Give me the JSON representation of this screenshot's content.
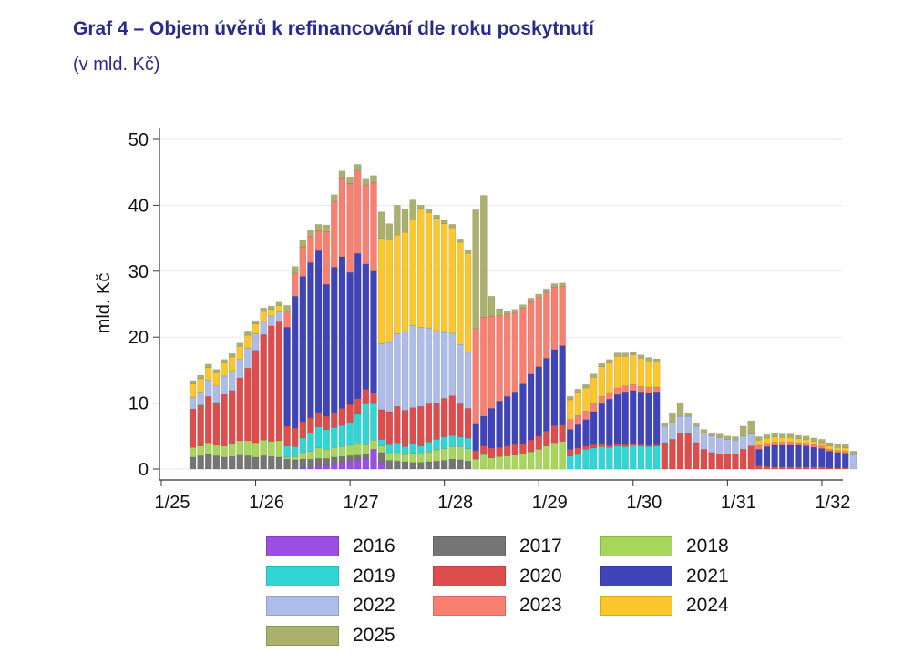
{
  "title": "Graf 4 – Objem úvěrů k refinancování dle roku poskytnutí",
  "subtitle": "(v mld. Kč)",
  "colors": {
    "2016": "#9b4de4",
    "2017": "#757575",
    "2018": "#a6d65a",
    "2019": "#30d5d5",
    "2020": "#de4c4c",
    "2021": "#3f45b8",
    "2022": "#aebcea",
    "2023": "#f98070",
    "2024": "#fcc62d",
    "2025": "#abb06c"
  },
  "chart_data": {
    "type": "bar",
    "stacked": true,
    "ylabel": "mld. Kč",
    "ylim": [
      0,
      52
    ],
    "yticks": [
      0,
      10,
      20,
      30,
      40,
      50
    ],
    "grid": true,
    "legend_position": "bottom",
    "x_tick_labels": [
      "1/25",
      "1/26",
      "1/27",
      "1/28",
      "1/29",
      "1/30",
      "1/31",
      "1/32"
    ],
    "x_start_label": "1/25",
    "bar_interval": "month",
    "months": 85,
    "series": [
      {
        "name": "2016",
        "values": [
          0,
          0,
          0,
          0,
          0,
          0,
          0,
          0,
          0,
          0,
          0,
          0,
          0,
          0,
          0.2,
          0.3,
          0.5,
          0.6,
          0.8,
          1.0,
          1.2,
          1.4,
          1.6,
          3.0,
          1.0,
          0,
          0,
          0,
          0,
          0,
          0,
          0,
          0,
          0,
          0,
          0,
          0,
          0,
          0,
          0,
          0,
          0,
          0,
          0,
          0,
          0,
          0,
          0,
          0,
          0,
          0,
          0,
          0,
          0,
          0,
          0,
          0,
          0,
          0,
          0,
          0,
          0,
          0,
          0,
          0,
          0,
          0,
          0,
          0,
          0,
          0,
          0,
          0,
          0,
          0,
          0,
          0,
          0,
          0,
          0,
          0,
          0,
          0,
          0,
          0
        ]
      },
      {
        "name": "2017",
        "values": [
          1.8,
          2.0,
          2.2,
          2.0,
          1.8,
          1.9,
          2.1,
          2.0,
          1.8,
          2.0,
          1.9,
          1.8,
          1.5,
          1.4,
          1.3,
          1.2,
          1.1,
          1.0,
          1.0,
          0.9,
          0.8,
          0.7,
          0.6,
          0,
          1.5,
          1.3,
          1.2,
          1.1,
          1.0,
          1.0,
          1.1,
          1.2,
          1.3,
          1.5,
          1.4,
          1.2,
          0,
          0,
          0,
          0,
          0,
          0,
          0,
          0,
          0,
          0,
          0,
          0,
          0,
          0,
          0,
          0,
          0,
          0,
          0,
          0,
          0,
          0,
          0,
          0,
          0,
          0,
          0,
          0,
          0,
          0,
          0,
          0,
          0,
          0,
          0,
          0,
          0,
          0,
          0,
          0,
          0,
          0,
          0,
          0,
          0,
          0,
          0,
          0,
          0
        ]
      },
      {
        "name": "2018",
        "values": [
          1.5,
          1.5,
          1.8,
          1.6,
          1.7,
          2.0,
          2.2,
          2.3,
          2.2,
          2.4,
          2.3,
          2.5,
          0.3,
          0.5,
          1.0,
          1.2,
          1.6,
          1.4,
          1.5,
          1.5,
          1.6,
          1.7,
          1.5,
          1.4,
          1.0,
          1.2,
          1.3,
          1.1,
          1.4,
          1.3,
          1.5,
          1.7,
          1.8,
          1.9,
          2.0,
          1.9,
          1.5,
          2.2,
          1.7,
          1.9,
          2.0,
          2.1,
          2.3,
          2.6,
          3.0,
          3.5,
          4.0,
          4.2,
          0,
          0,
          0,
          0,
          0,
          0,
          0,
          0,
          0,
          0,
          0,
          0,
          0,
          0,
          0,
          0,
          0,
          0,
          0,
          0,
          0,
          0,
          0,
          0,
          0,
          0,
          0,
          0,
          0,
          0,
          0,
          0,
          0,
          0,
          0,
          0,
          0
        ]
      },
      {
        "name": "2019",
        "values": [
          0,
          0,
          0,
          0,
          0,
          0,
          0,
          0,
          0,
          0,
          0,
          0,
          1.7,
          1.5,
          2.2,
          2.8,
          3.2,
          3.0,
          3.0,
          3.2,
          3.5,
          4.5,
          6.2,
          5.5,
          1.0,
          1.2,
          1.5,
          1.2,
          1.4,
          1.2,
          1.5,
          1.6,
          1.8,
          1.7,
          1.5,
          1.6,
          0,
          0,
          0,
          0,
          0,
          0,
          0,
          0,
          0,
          0,
          0,
          0,
          2.0,
          2.2,
          3.0,
          3.2,
          3.4,
          3.3,
          3.5,
          3.4,
          3.6,
          3.5,
          3.4,
          3.5,
          0,
          0,
          0,
          0,
          0,
          0,
          0,
          0,
          0,
          0,
          0,
          0,
          0,
          0,
          0,
          0,
          0,
          0,
          0,
          0,
          0,
          0,
          0,
          0,
          0
        ]
      },
      {
        "name": "2020",
        "values": [
          5.8,
          6.2,
          7.0,
          6.5,
          7.8,
          8.0,
          9.5,
          11.0,
          14.0,
          16.0,
          17.5,
          18.0,
          3.0,
          2.8,
          2.5,
          2.3,
          2.2,
          2.0,
          2.3,
          2.6,
          2.7,
          2.4,
          2.2,
          1.6,
          4.5,
          5.0,
          5.5,
          5.5,
          5.5,
          6.0,
          5.8,
          5.5,
          5.8,
          6.0,
          5.0,
          4.5,
          1.3,
          1.3,
          1.5,
          1.4,
          1.5,
          1.6,
          1.6,
          1.8,
          2.0,
          2.3,
          2.6,
          2.5,
          1.0,
          1.0,
          0.5,
          0.5,
          0.5,
          0.3,
          0.3,
          0.3,
          0.3,
          0.2,
          0.2,
          0.2,
          4.0,
          4.5,
          5.5,
          5.5,
          4.0,
          3.0,
          2.5,
          2.3,
          2.2,
          2.2,
          3.0,
          3.5,
          0.5,
          0.4,
          0.3,
          0.3,
          0.3,
          0.3,
          0.3,
          0.3,
          0.3,
          0.2,
          0.2,
          0.2,
          0
        ]
      },
      {
        "name": "2021",
        "values": [
          0,
          0,
          0,
          0,
          0,
          0,
          0,
          0,
          0,
          0,
          0,
          0,
          15.0,
          20.0,
          22.0,
          23.5,
          24.5,
          20.0,
          22.0,
          23.0,
          20.0,
          22.0,
          19.0,
          18.5,
          0,
          0,
          0,
          0,
          0,
          0,
          0,
          0,
          0,
          0,
          0,
          0,
          4.0,
          4.5,
          6.0,
          7.0,
          7.5,
          8.0,
          9.0,
          10.0,
          10.5,
          11.0,
          11.5,
          12.0,
          3.0,
          3.5,
          4.0,
          5.0,
          6.0,
          7.0,
          7.5,
          8.0,
          8.0,
          8.0,
          8.0,
          8.0,
          0,
          0,
          0,
          0,
          0,
          0,
          0,
          0,
          0,
          0,
          0,
          0,
          2.5,
          3.0,
          3.3,
          3.3,
          3.3,
          3.3,
          3.2,
          3.0,
          2.8,
          2.5,
          2.3,
          2.2,
          0
        ]
      },
      {
        "name": "2022",
        "values": [
          1.8,
          2.0,
          2.5,
          2.5,
          2.8,
          3.0,
          2.8,
          3.0,
          2.5,
          2.0,
          1.5,
          1.5,
          0,
          0,
          0,
          0,
          0,
          0,
          0,
          0,
          0,
          0,
          0,
          0,
          10.0,
          10.5,
          11.0,
          12.0,
          12.5,
          12.0,
          11.5,
          11.0,
          10.0,
          9.5,
          9.0,
          8.5,
          0,
          0,
          0,
          0,
          0,
          0,
          0,
          0,
          0,
          0,
          0,
          0,
          0,
          0,
          0,
          0,
          0,
          0,
          0,
          0,
          0,
          0,
          0,
          0,
          2.5,
          2.5,
          2.5,
          2.5,
          2.5,
          2.5,
          2.5,
          2.5,
          2.3,
          2.2,
          2.0,
          1.8,
          0,
          0,
          0,
          0,
          0,
          0,
          0,
          0,
          0,
          0,
          0,
          0,
          2.2
        ]
      },
      {
        "name": "2023",
        "values": [
          0,
          0,
          0,
          0,
          0,
          0,
          0,
          0,
          0,
          0,
          0,
          0,
          2.5,
          3.5,
          4.5,
          4.0,
          3.0,
          8.0,
          10.0,
          12.0,
          13.5,
          12.5,
          12.0,
          13.5,
          0,
          0,
          0,
          0,
          0,
          0,
          0,
          0,
          0,
          0,
          0,
          0,
          14.5,
          15.0,
          14.0,
          13.0,
          12.5,
          12.0,
          11.5,
          11.0,
          10.5,
          10.0,
          9.5,
          9.0,
          1.5,
          1.4,
          1.3,
          1.2,
          1.1,
          1.0,
          1.0,
          0.9,
          0.9,
          0.8,
          0.8,
          0.7,
          0,
          0,
          0,
          0,
          0,
          0,
          0,
          0,
          0,
          0,
          0,
          0,
          0.6,
          0.5,
          0.5,
          0.5,
          0.5,
          0.4,
          0.4,
          0.4,
          0.4,
          0.3,
          0.3,
          0.3,
          0
        ]
      },
      {
        "name": "2024",
        "values": [
          2.0,
          2.0,
          1.9,
          2.0,
          2.0,
          2.1,
          2.0,
          2.0,
          1.5,
          1.5,
          1.0,
          1.0,
          0,
          0,
          0,
          0,
          0,
          0,
          0,
          0,
          0,
          0,
          0,
          0,
          16.0,
          15.5,
          15.0,
          15.0,
          16.0,
          18.0,
          17.5,
          17.0,
          16.5,
          16.0,
          15.5,
          15.0,
          0,
          0,
          0,
          0,
          0,
          0,
          0,
          0,
          0,
          0,
          0,
          0,
          3.0,
          3.5,
          3.5,
          4.0,
          4.5,
          4.5,
          4.8,
          4.5,
          4.5,
          4.3,
          4.0,
          3.8,
          0,
          0,
          0,
          0,
          0,
          0,
          0,
          0,
          0,
          0,
          0,
          0,
          0.8,
          0.8,
          0.8,
          0.7,
          0.7,
          0.6,
          0.6,
          0.5,
          0.5,
          0.5,
          0.5,
          0.5,
          0
        ]
      },
      {
        "name": "2025",
        "values": [
          0.5,
          0.5,
          0.5,
          0.5,
          0.5,
          0.5,
          0.5,
          0.5,
          0.5,
          0.5,
          0.5,
          0.5,
          0.8,
          1.0,
          1.0,
          1.0,
          1.0,
          1.0,
          1.0,
          1.0,
          1.0,
          1.0,
          1.0,
          1.0,
          4.0,
          2.5,
          4.5,
          3.5,
          3.0,
          0.5,
          0.5,
          0.5,
          0.5,
          0.5,
          0.5,
          0.5,
          18.0,
          18.5,
          3.0,
          1.0,
          0.5,
          0.5,
          0.5,
          0.5,
          0.5,
          0.5,
          0.5,
          0.5,
          0.5,
          0.5,
          0.5,
          0.5,
          0.5,
          0.5,
          0.5,
          0.5,
          0.5,
          0.5,
          0.5,
          0.5,
          0.5,
          1.5,
          2.0,
          0.5,
          0.5,
          0.5,
          0.5,
          0.5,
          0.5,
          0.5,
          1.5,
          2.0,
          0.5,
          0.5,
          0.5,
          0.5,
          0.5,
          0.5,
          0.5,
          0.5,
          0.5,
          0.5,
          0.5,
          0.5,
          0.5
        ]
      }
    ]
  }
}
